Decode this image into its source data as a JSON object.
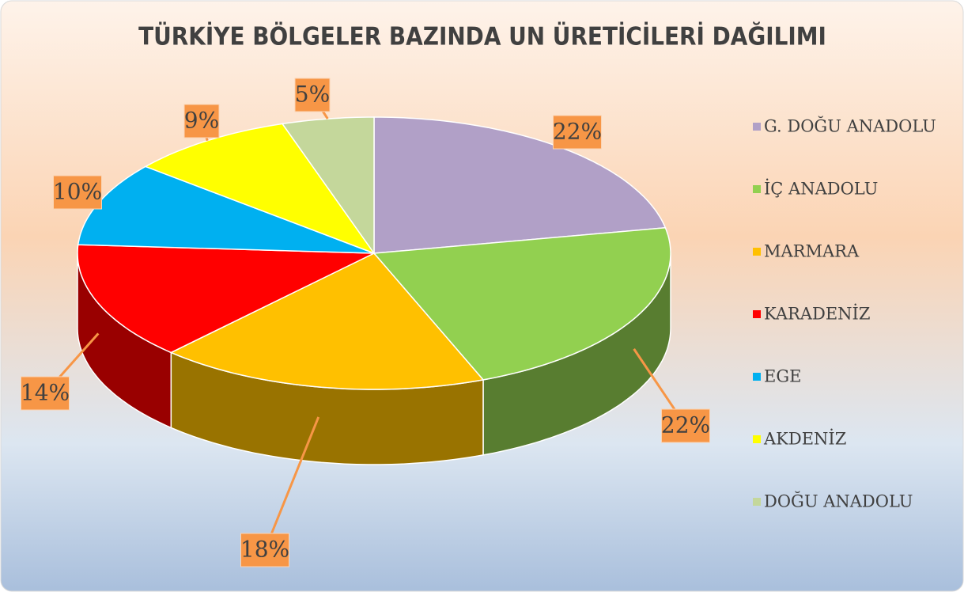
{
  "chart_data": {
    "type": "pie",
    "title": "TÜRKİYE BÖLGELER BAZINDA UN ÜRETİCİLERİ DAĞILIMI",
    "categories": [
      "G. DOĞU ANADOLU",
      "İÇ ANADOLU",
      "MARMARA",
      "KARADENİZ",
      "EGE",
      "AKDENİZ",
      "DOĞU ANADOLU"
    ],
    "values": [
      22,
      22,
      18,
      14,
      10,
      9,
      5
    ],
    "value_labels": [
      "22%",
      "22%",
      "18%",
      "14%",
      "10%",
      "9%",
      "5%"
    ],
    "colors": [
      "#b1a0c7",
      "#92d050",
      "#ffc000",
      "#ff0000",
      "#00b0f0",
      "#ffff00",
      "#c4d79b"
    ],
    "legend": "right"
  }
}
